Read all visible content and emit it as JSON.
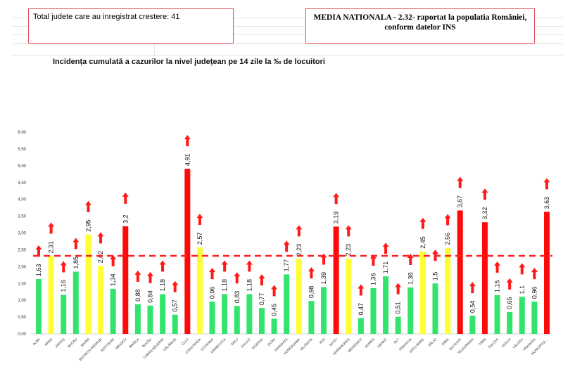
{
  "header": {
    "total_box": "Total judete care au inregistrat crestere: 41",
    "media_box_line1": "MEDIA NATIONALA - 2.32-  raportat la populatia României,",
    "media_box_line2": "conform datelor INS"
  },
  "chart_data": {
    "type": "bar",
    "title": "Incidența cumulată a cazurilor la nivel județean pe 14 zile la ‰ de locuitori",
    "ylim": [
      0,
      6
    ],
    "yticks": [
      "0,00",
      "0,50",
      "1,00",
      "1,50",
      "2,00",
      "2,50",
      "3,00",
      "3,50",
      "4,00",
      "4,50",
      "5,00",
      "5,50",
      "6,00"
    ],
    "reference_line": {
      "value": 2.32,
      "style": "dashed",
      "color": "#ff2020"
    },
    "colors": {
      "low": "#33e46c",
      "mid": "#ffff33",
      "high": "#ff0a0a",
      "arrow": "#ff1a1a"
    },
    "categories": [
      "ALBA",
      "ARAD",
      "ARGEȘ",
      "BACĂU",
      "BIHOR",
      "BISTRIȚA-NĂSĂUD",
      "BOTOȘANI",
      "BRAȘOV",
      "BRĂILA",
      "BUZĂU",
      "CARAȘ-SEVERIN",
      "CĂLĂRAȘI",
      "CLUJ",
      "CONSTANȚA",
      "COVASNA",
      "DÂMBOVIȚA",
      "DOLJ",
      "GALAȚI",
      "GIURGIU",
      "GORJ",
      "HARGHITA",
      "HUNEDOARA",
      "IALOMIȚA",
      "IAȘI",
      "ILFOV",
      "MARAMUREȘ",
      "MEHEDINȚI",
      "MUREȘ",
      "NEAMȚ",
      "OLT",
      "PRAHOVA",
      "SATU MARE",
      "SĂLAJ",
      "SIBIU",
      "SUCEAVA",
      "TELEORMAN",
      "TIMIȘ",
      "TULCEA",
      "VASLUI",
      "VÂLCEA",
      "VRANCEA",
      "MUNICIPIUL..."
    ],
    "values": [
      1.63,
      2.31,
      1.16,
      1.85,
      2.95,
      2.02,
      1.34,
      3.2,
      0.88,
      0.84,
      1.18,
      0.57,
      4.91,
      2.57,
      0.96,
      1.18,
      0.83,
      1.18,
      0.77,
      0.45,
      1.77,
      2.23,
      0.98,
      1.39,
      3.19,
      2.23,
      0.47,
      1.36,
      1.71,
      0.51,
      1.38,
      2.45,
      1.5,
      2.56,
      3.67,
      0.54,
      3.32,
      1.15,
      0.65,
      1.1,
      0.96,
      3.63
    ],
    "value_labels": [
      "1,63",
      "2,31",
      "1,16",
      "1,85",
      "2,95",
      "2,02",
      "1,34",
      "3,2",
      "0,88",
      "0,84",
      "1,18",
      "0,57",
      "4,91",
      "2,57",
      "0,96",
      "1,18",
      "0,83",
      "1,18",
      "0,77",
      "0,45",
      "1,77",
      "2,23",
      "0,98",
      "1,39",
      "3,19",
      "2,23",
      "0,47",
      "1,36",
      "1,71",
      "0,51",
      "1,38",
      "2,45",
      "1,5",
      "2,56",
      "3,67",
      "0,54",
      "3,32",
      "1,15",
      "0,65",
      "1,1",
      "0,96",
      "3,63"
    ],
    "bar_colors": [
      "low",
      "mid",
      "low",
      "low",
      "mid",
      "mid",
      "low",
      "high",
      "low",
      "low",
      "low",
      "low",
      "high",
      "mid",
      "low",
      "low",
      "low",
      "low",
      "low",
      "low",
      "low",
      "mid",
      "low",
      "low",
      "high",
      "mid",
      "low",
      "low",
      "low",
      "low",
      "low",
      "mid",
      "low",
      "mid",
      "high",
      "low",
      "high",
      "low",
      "low",
      "low",
      "low",
      "high"
    ],
    "trend": "up"
  }
}
